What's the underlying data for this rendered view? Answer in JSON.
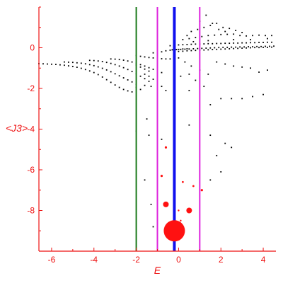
{
  "chart_data": {
    "type": "scatter",
    "xlabel": "E",
    "ylabel": "<J3>",
    "xlim": [
      -6.6,
      4.6
    ],
    "ylim": [
      -10.0,
      2.0
    ],
    "x_ticks": [
      -6,
      -4,
      -2,
      0,
      2,
      4
    ],
    "y_ticks": [
      0,
      -2,
      -4,
      -6,
      -8
    ],
    "x_tick_labels": [
      "-6",
      "-4",
      "-2",
      "0",
      "2",
      "4"
    ],
    "y_tick_labels": [
      "0",
      "-2",
      "-4",
      "-6",
      "-8"
    ],
    "axis_color": "#ee1111",
    "vertical_lines": [
      {
        "x": -2.0,
        "color": "#1a7a1a"
      },
      {
        "x": -1.0,
        "color": "#dd22dd"
      },
      {
        "x": -0.2,
        "color": "#1111ee"
      },
      {
        "x": 1.0,
        "color": "#dd22dd"
      }
    ],
    "red_points": [
      {
        "x": -0.2,
        "y": -9.0,
        "size": 15
      },
      {
        "x": -0.6,
        "y": -7.7,
        "size": 4
      },
      {
        "x": 0.5,
        "y": -8.0,
        "size": 4
      },
      {
        "x": -0.6,
        "y": -4.9,
        "size": 1.6
      },
      {
        "x": -0.8,
        "y": -6.3,
        "size": 1.6
      },
      {
        "x": 0.2,
        "y": -6.6,
        "size": 1.4
      },
      {
        "x": 0.7,
        "y": -6.8,
        "size": 1.4
      },
      {
        "x": 1.1,
        "y": -7.0,
        "size": 1.6
      },
      {
        "x": 0.0,
        "y": -8.0,
        "size": 1.2
      },
      {
        "x": 0.1,
        "y": -8.5,
        "size": 1.2
      }
    ],
    "black_points": [
      [
        -6.6,
        -0.78
      ],
      [
        -6.4,
        -0.79
      ],
      [
        -6.2,
        -0.8
      ],
      [
        -6.0,
        -0.81
      ],
      [
        -5.8,
        -0.82
      ],
      [
        -5.6,
        -0.84
      ],
      [
        -5.4,
        -0.86
      ],
      [
        -5.2,
        -0.89
      ],
      [
        -5.0,
        -0.92
      ],
      [
        -4.8,
        -0.96
      ],
      [
        -4.6,
        -1.01
      ],
      [
        -4.4,
        -1.07
      ],
      [
        -4.2,
        -1.14
      ],
      [
        -4.0,
        -1.22
      ],
      [
        -3.8,
        -1.32
      ],
      [
        -3.6,
        -1.44
      ],
      [
        -3.4,
        -1.57
      ],
      [
        -3.2,
        -1.7
      ],
      [
        -3.0,
        -1.83
      ],
      [
        -2.8,
        -1.95
      ],
      [
        -2.6,
        -2.05
      ],
      [
        -2.4,
        -2.12
      ],
      [
        -2.2,
        -2.17
      ],
      [
        -5.4,
        -0.7
      ],
      [
        -5.2,
        -0.71
      ],
      [
        -5.0,
        -0.72
      ],
      [
        -4.8,
        -0.74
      ],
      [
        -4.6,
        -0.76
      ],
      [
        -4.4,
        -0.79
      ],
      [
        -4.2,
        -0.83
      ],
      [
        -4.0,
        -0.88
      ],
      [
        -3.8,
        -0.94
      ],
      [
        -3.6,
        -1.01
      ],
      [
        -3.4,
        -1.09
      ],
      [
        -3.2,
        -1.18
      ],
      [
        -3.0,
        -1.28
      ],
      [
        -2.8,
        -1.38
      ],
      [
        -2.6,
        -1.48
      ],
      [
        -2.4,
        -1.58
      ],
      [
        -2.2,
        -1.68
      ],
      [
        -2.0,
        -1.8
      ],
      [
        -4.2,
        -0.62
      ],
      [
        -4.0,
        -0.63
      ],
      [
        -3.8,
        -0.65
      ],
      [
        -3.6,
        -0.68
      ],
      [
        -3.4,
        -0.72
      ],
      [
        -3.2,
        -0.77
      ],
      [
        -3.0,
        -0.83
      ],
      [
        -2.8,
        -0.9
      ],
      [
        -2.6,
        -0.98
      ],
      [
        -2.4,
        -1.07
      ],
      [
        -2.2,
        -1.17
      ],
      [
        -2.0,
        -1.28
      ],
      [
        -1.8,
        -1.4
      ],
      [
        -1.6,
        -1.52
      ],
      [
        -1.4,
        -1.65
      ],
      [
        -3.2,
        -0.55
      ],
      [
        -3.0,
        -0.56
      ],
      [
        -2.8,
        -0.58
      ],
      [
        -2.6,
        -0.61
      ],
      [
        -2.4,
        -0.65
      ],
      [
        -2.2,
        -0.7
      ],
      [
        -2.0,
        -0.76
      ],
      [
        -1.8,
        -0.83
      ],
      [
        -1.6,
        -0.9
      ],
      [
        -1.4,
        -0.98
      ],
      [
        -1.2,
        -1.06
      ],
      [
        -1.0,
        -1.14
      ],
      [
        -0.8,
        -1.22
      ],
      [
        -2.0,
        -0.38
      ],
      [
        -1.8,
        -0.42
      ],
      [
        -1.6,
        -0.45
      ],
      [
        -1.4,
        -0.48
      ],
      [
        -1.2,
        -0.5
      ],
      [
        -1.0,
        -0.52
      ],
      [
        -0.8,
        -0.54
      ],
      [
        -0.6,
        -0.55
      ],
      [
        -0.4,
        -0.55
      ],
      [
        -1.2,
        -0.25
      ],
      [
        -1.0,
        -0.22
      ],
      [
        -0.8,
        -0.2
      ],
      [
        -0.6,
        -0.15
      ],
      [
        -0.4,
        -0.12
      ],
      [
        -0.2,
        -0.1
      ],
      [
        0.0,
        -0.08
      ],
      [
        0.2,
        -0.06
      ],
      [
        0.4,
        -0.05
      ],
      [
        -1.6,
        -1.3
      ],
      [
        -1.4,
        -1.4
      ],
      [
        -1.2,
        -1.55
      ],
      [
        -1.0,
        -1.7
      ],
      [
        -0.8,
        -1.9
      ],
      [
        -0.6,
        -2.1
      ],
      [
        -2.0,
        -1.95
      ],
      [
        -1.8,
        -2.05
      ],
      [
        -1.6,
        -1.85
      ],
      [
        -1.3,
        -1.9
      ],
      [
        -2.0,
        -0.85
      ],
      [
        -1.8,
        -0.95
      ],
      [
        -1.6,
        -1.05
      ],
      [
        -1.4,
        -1.15
      ],
      [
        -0.4,
        0.1
      ],
      [
        -0.2,
        0.12
      ],
      [
        0.0,
        0.14
      ],
      [
        0.2,
        0.15
      ],
      [
        0.4,
        0.16
      ],
      [
        0.6,
        0.17
      ],
      [
        0.8,
        0.18
      ],
      [
        1.0,
        0.18
      ],
      [
        1.2,
        0.19
      ],
      [
        1.4,
        0.2
      ],
      [
        1.6,
        0.2
      ],
      [
        1.8,
        0.21
      ],
      [
        2.0,
        0.21
      ],
      [
        2.2,
        0.22
      ],
      [
        2.4,
        0.22
      ],
      [
        2.6,
        0.23
      ],
      [
        2.8,
        0.23
      ],
      [
        3.0,
        0.24
      ],
      [
        3.2,
        0.24
      ],
      [
        3.4,
        0.25
      ],
      [
        3.6,
        0.25
      ],
      [
        3.8,
        0.26
      ],
      [
        4.0,
        0.26
      ],
      [
        4.2,
        0.27
      ],
      [
        4.4,
        0.27
      ],
      [
        -0.3,
        -0.1
      ],
      [
        -0.1,
        -0.09
      ],
      [
        0.1,
        -0.08
      ],
      [
        0.3,
        -0.07
      ],
      [
        0.5,
        -0.06
      ],
      [
        0.7,
        -0.05
      ],
      [
        0.9,
        -0.04
      ],
      [
        1.1,
        -0.03
      ],
      [
        1.3,
        -0.02
      ],
      [
        1.5,
        -0.01
      ],
      [
        1.7,
        0.0
      ],
      [
        1.9,
        0.01
      ],
      [
        2.1,
        0.02
      ],
      [
        2.3,
        0.02
      ],
      [
        2.5,
        0.03
      ],
      [
        2.7,
        0.03
      ],
      [
        2.9,
        0.04
      ],
      [
        3.1,
        0.04
      ],
      [
        3.3,
        0.05
      ],
      [
        3.5,
        0.05
      ],
      [
        3.7,
        0.06
      ],
      [
        3.9,
        0.06
      ],
      [
        4.1,
        0.07
      ],
      [
        4.3,
        0.07
      ],
      [
        4.5,
        0.08
      ],
      [
        -0.2,
        -0.2
      ],
      [
        0.0,
        -0.18
      ],
      [
        0.2,
        -0.17
      ],
      [
        0.4,
        -0.15
      ],
      [
        0.6,
        -0.14
      ],
      [
        0.8,
        -0.13
      ],
      [
        1.0,
        -0.12
      ],
      [
        1.2,
        -0.11
      ],
      [
        1.4,
        -0.1
      ],
      [
        1.6,
        -0.09
      ],
      [
        1.8,
        -0.08
      ],
      [
        2.0,
        -0.07
      ],
      [
        2.2,
        -0.06
      ],
      [
        2.4,
        -0.05
      ],
      [
        2.6,
        -0.04
      ],
      [
        2.8,
        -0.03
      ],
      [
        3.0,
        -0.02
      ],
      [
        3.2,
        -0.01
      ],
      [
        3.4,
        0.0
      ],
      [
        3.6,
        0.01
      ],
      [
        3.8,
        0.01
      ],
      [
        4.0,
        0.02
      ],
      [
        4.2,
        0.02
      ],
      [
        4.4,
        0.03
      ],
      [
        0.2,
        0.4
      ],
      [
        0.5,
        0.45
      ],
      [
        0.8,
        0.5
      ],
      [
        1.1,
        0.55
      ],
      [
        1.4,
        0.6
      ],
      [
        1.7,
        0.62
      ],
      [
        2.0,
        0.65
      ],
      [
        2.3,
        0.66
      ],
      [
        2.6,
        0.67
      ],
      [
        2.9,
        0.6
      ],
      [
        3.2,
        0.58
      ],
      [
        3.5,
        0.6
      ],
      [
        3.8,
        0.62
      ],
      [
        4.1,
        0.6
      ],
      [
        4.4,
        0.6
      ],
      [
        0.6,
        0.8
      ],
      [
        0.9,
        0.9
      ],
      [
        1.2,
        1.0
      ],
      [
        1.5,
        1.1
      ],
      [
        1.8,
        1.2
      ],
      [
        2.1,
        1.0
      ],
      [
        2.4,
        0.95
      ],
      [
        2.7,
        0.85
      ],
      [
        3.0,
        0.75
      ],
      [
        1.0,
        1.3
      ],
      [
        1.3,
        1.6
      ],
      [
        1.6,
        1.2
      ],
      [
        1.9,
        0.9
      ],
      [
        2.2,
        0.8
      ],
      [
        0.4,
        0.6
      ],
      [
        0.7,
        0.3
      ],
      [
        1.4,
        0.35
      ],
      [
        2.6,
        0.4
      ],
      [
        3.4,
        0.4
      ],
      [
        4.2,
        0.45
      ],
      [
        0.0,
        -0.5
      ],
      [
        0.3,
        -0.7
      ],
      [
        0.6,
        -0.9
      ],
      [
        1.0,
        -1.1
      ],
      [
        1.4,
        -1.3
      ],
      [
        1.8,
        -0.7
      ],
      [
        2.2,
        -0.8
      ],
      [
        2.6,
        -0.9
      ],
      [
        3.0,
        -0.95
      ],
      [
        3.4,
        -1.0
      ],
      [
        3.8,
        -1.2
      ],
      [
        4.2,
        -1.1
      ],
      [
        0.8,
        -1.6
      ],
      [
        1.2,
        -1.9
      ],
      [
        0.5,
        -2.1
      ],
      [
        0.1,
        -1.4
      ],
      [
        0.5,
        -1.3
      ],
      [
        2.0,
        -2.5
      ],
      [
        2.5,
        -2.5
      ],
      [
        3.0,
        -2.5
      ],
      [
        3.5,
        -2.4
      ],
      [
        1.5,
        -2.8
      ],
      [
        4.0,
        -2.3
      ],
      [
        -1.5,
        -3.5
      ],
      [
        -2.0,
        -4.1
      ],
      [
        -1.4,
        -4.3
      ],
      [
        -0.8,
        -4.5
      ],
      [
        0.5,
        -3.8
      ],
      [
        1.5,
        -4.3
      ],
      [
        2.2,
        -4.7
      ],
      [
        2.5,
        -4.9
      ],
      [
        1.8,
        -5.3
      ],
      [
        2.0,
        -6.1
      ],
      [
        1.5,
        -6.5
      ],
      [
        -1.6,
        -6.5
      ],
      [
        -1.3,
        -7.7
      ],
      [
        -1.2,
        -8.8
      ]
    ]
  }
}
